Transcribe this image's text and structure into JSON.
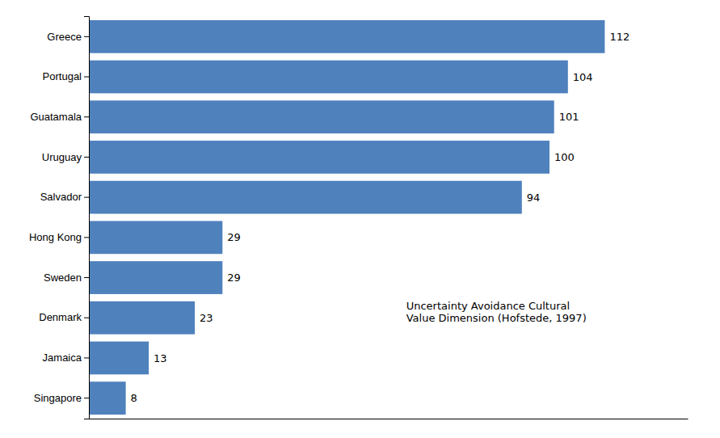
{
  "chart_data": {
    "type": "bar",
    "orientation": "horizontal",
    "categories": [
      "Greece",
      "Portugal",
      "Guatamala",
      "Uruguay",
      "Salvador",
      "Hong Kong",
      "Sweden",
      "Denmark",
      "Jamaica",
      "Singapore"
    ],
    "values": [
      112,
      104,
      101,
      100,
      94,
      29,
      29,
      23,
      13,
      8
    ],
    "color": "#4F81BD",
    "xlim": [
      0,
      130
    ],
    "data_labels": true,
    "tick_labels": "y",
    "grid": false,
    "annotation": "Uncertainty Avoidance Cultural\nValue Dimension (Hofstede, 1997)"
  }
}
